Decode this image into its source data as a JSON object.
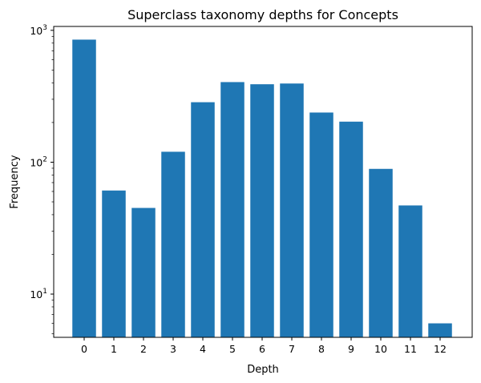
{
  "chart_data": {
    "type": "bar",
    "title": "Superclass taxonomy depths for Concepts",
    "xlabel": "Depth",
    "ylabel": "Frequency",
    "yscale": "log",
    "ylim": [
      4.7,
      1070
    ],
    "categories": [
      "0",
      "1",
      "2",
      "3",
      "4",
      "5",
      "6",
      "7",
      "8",
      "9",
      "10",
      "11",
      "12"
    ],
    "values": [
      850,
      61,
      45,
      120,
      285,
      405,
      390,
      395,
      238,
      203,
      89,
      47,
      6
    ],
    "ytick_major": [
      {
        "value": 10,
        "base": "10",
        "exp": "1"
      },
      {
        "value": 100,
        "base": "10",
        "exp": "2"
      },
      {
        "value": 1000,
        "base": "10",
        "exp": "3"
      }
    ],
    "bar_color": "#1f77b4",
    "grid": false,
    "legend": "none"
  }
}
